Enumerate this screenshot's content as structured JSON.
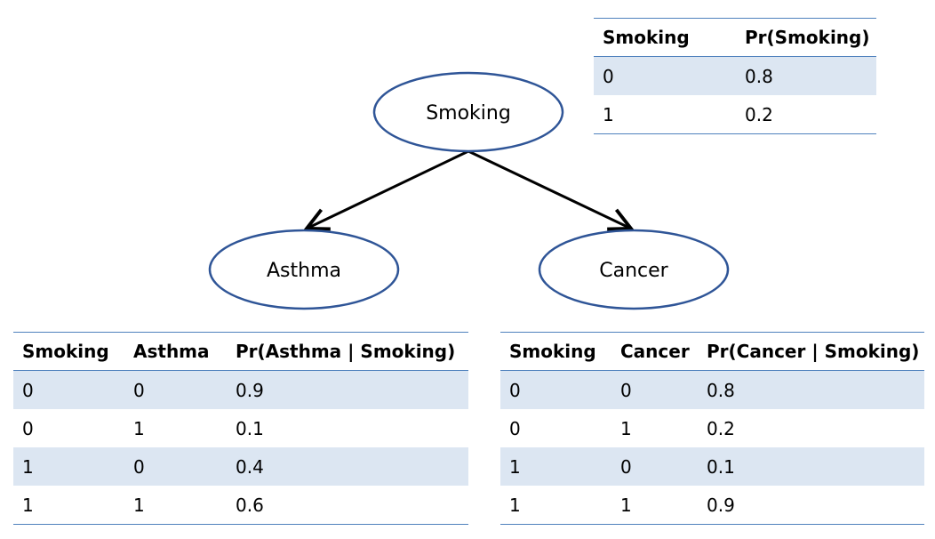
{
  "nodes": {
    "smoking": "Smoking",
    "asthma": "Asthma",
    "cancer": "Cancer"
  },
  "tables": {
    "smoking": {
      "headers": [
        "Smoking",
        "Pr(Smoking)"
      ],
      "rows": [
        [
          "0",
          "0.8"
        ],
        [
          "1",
          "0.2"
        ]
      ]
    },
    "asthma": {
      "headers": [
        "Smoking",
        "Asthma",
        "Pr(Asthma | Smoking)"
      ],
      "rows": [
        [
          "0",
          "0",
          "0.9"
        ],
        [
          "0",
          "1",
          "0.1"
        ],
        [
          "1",
          "0",
          "0.4"
        ],
        [
          "1",
          "1",
          "0.6"
        ]
      ]
    },
    "cancer": {
      "headers": [
        "Smoking",
        "Cancer",
        "Pr(Cancer | Smoking)"
      ],
      "rows": [
        [
          "0",
          "0",
          "0.8"
        ],
        [
          "0",
          "1",
          "0.2"
        ],
        [
          "1",
          "0",
          "0.1"
        ],
        [
          "1",
          "1",
          "0.9"
        ]
      ]
    }
  },
  "colors": {
    "node_stroke": "#2f5597",
    "table_border": "#4f81bd",
    "row_band": "#dce6f2",
    "edge": "#000000"
  }
}
